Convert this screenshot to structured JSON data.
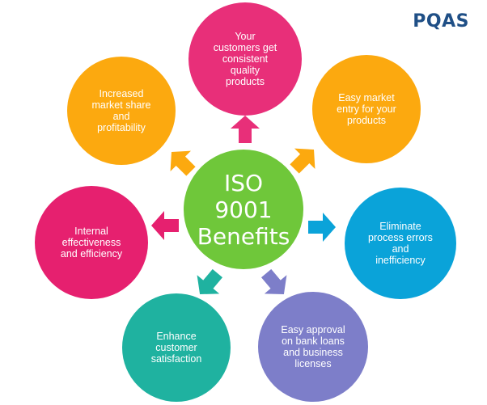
{
  "brand": {
    "logo_text": "PQAS"
  },
  "diagram": {
    "center": {
      "lines": [
        "ISO",
        "9001",
        "Benefits"
      ],
      "color": "#6fc73a"
    },
    "benefits": [
      {
        "id": "consistent-quality",
        "lines": [
          "Your",
          "customers get",
          "consistent",
          "quality",
          "products"
        ],
        "color": "#e82f79"
      },
      {
        "id": "easy-market-entry",
        "lines": [
          "Easy market",
          "entry for your",
          "products"
        ],
        "color": "#fca90f"
      },
      {
        "id": "eliminate-errors",
        "lines": [
          "Eliminate",
          "process errors",
          "and",
          "inefficiency"
        ],
        "color": "#0aa3d9"
      },
      {
        "id": "easy-approval",
        "lines": [
          "Easy approval",
          "on bank loans",
          "and business",
          "licenses"
        ],
        "color": "#7d7ec9"
      },
      {
        "id": "customer-satisfaction",
        "lines": [
          "Enhance",
          "customer",
          "satisfaction"
        ],
        "color": "#1fb2a0"
      },
      {
        "id": "internal-effectiveness",
        "lines": [
          "Internal",
          "effectiveness",
          "and efficiency"
        ],
        "color": "#e6206f"
      },
      {
        "id": "market-share",
        "lines": [
          "Increased",
          "market share",
          "and",
          "profitability"
        ],
        "color": "#fca90f"
      }
    ],
    "arrow_colors": {
      "up": "#e82f79",
      "up-right": "#fca90f",
      "right": "#0aa3d9",
      "down-right": "#7d7ec9",
      "down-left": "#1fb2a0",
      "left": "#e6206f",
      "up-left": "#fca90f"
    }
  }
}
